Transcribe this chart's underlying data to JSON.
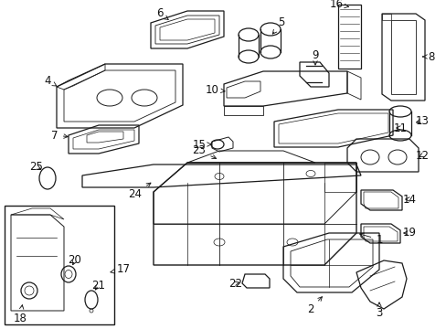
{
  "background_color": "#ffffff",
  "line_color": "#1a1a1a",
  "text_color": "#111111",
  "figsize": [
    4.89,
    3.6
  ],
  "dpi": 100
}
